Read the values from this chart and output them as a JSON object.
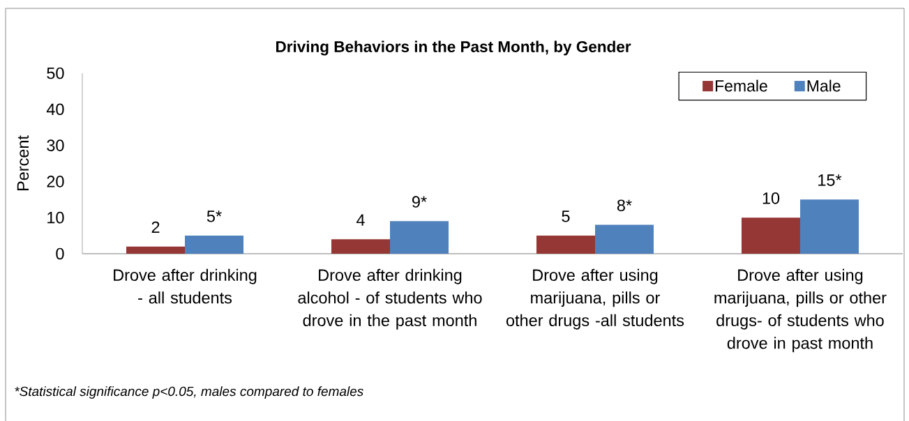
{
  "chart_data": {
    "type": "bar",
    "title": "Driving Behaviors in the Past Month, by Gender",
    "ylabel": "Percent",
    "categories": [
      "Drove after drinking - all students",
      "Drove after drinking alcohol - of students who drove in the past month",
      "Drove after using marijuana, pills or other drugs -all students",
      "Drove after using marijuana, pills or other drugs- of students who drove in past month"
    ],
    "series": [
      {
        "name": "Female",
        "color": "#953735",
        "values": [
          2,
          4,
          5,
          10
        ],
        "value_labels": [
          "2",
          "4",
          "5",
          "10"
        ]
      },
      {
        "name": "Male",
        "color": "#4f81bd",
        "values": [
          5,
          9,
          8,
          15
        ],
        "value_labels": [
          "5*",
          "9*",
          "8*",
          "15*"
        ]
      }
    ],
    "ylim": [
      0,
      50
    ],
    "yticks": [
      0,
      10,
      20,
      30,
      40,
      50
    ],
    "legend": "top right",
    "annotations": [
      "*Statistical significance p<0.05, males compared to females"
    ]
  }
}
